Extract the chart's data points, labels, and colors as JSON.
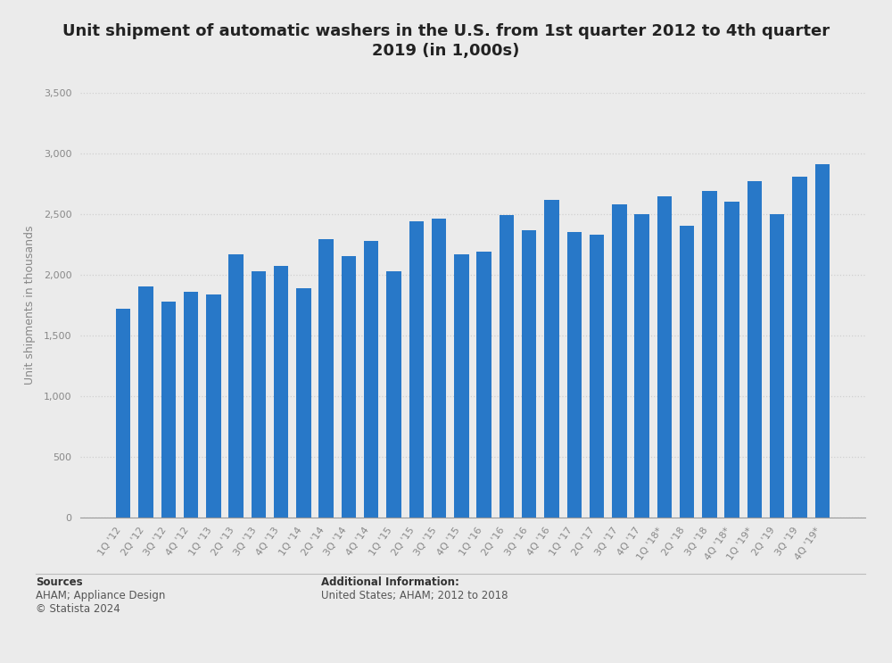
{
  "title_line1": "Unit shipment of automatic washers in the U.S. from 1st quarter 2012 to 4th quarter",
  "title_line2": "2019 (in 1,000s)",
  "ylabel": "Unit shipments in thousands",
  "bar_color": "#2878c8",
  "background_color": "#ebebeb",
  "plot_bg_color": "#ebebeb",
  "ylim": [
    0,
    3500
  ],
  "yticks": [
    0,
    500,
    1000,
    1500,
    2000,
    2500,
    3000,
    3500
  ],
  "categories": [
    "1Q '12",
    "2Q '12",
    "3Q '12",
    "4Q '12",
    "1Q '13",
    "2Q '13",
    "3Q '13",
    "4Q '13",
    "1Q '14",
    "2Q '14",
    "3Q '14",
    "4Q '14",
    "1Q '15",
    "2Q '15",
    "3Q '15",
    "4Q '15",
    "1Q '16",
    "2Q '16",
    "3Q '16",
    "4Q '16",
    "1Q '17",
    "2Q '17",
    "3Q '17",
    "4Q '17",
    "1Q '18*",
    "2Q '18",
    "3Q '18",
    "4Q '18*",
    "1Q '19*",
    "2Q '19",
    "3Q '19",
    "4Q '19*"
  ],
  "values": [
    1720,
    1900,
    1780,
    1860,
    1840,
    2170,
    2030,
    2070,
    1890,
    2290,
    2150,
    2280,
    2030,
    2440,
    2460,
    2170,
    2190,
    2490,
    2370,
    2620,
    2350,
    2330,
    2580,
    2500,
    2650,
    2400,
    2690,
    2600,
    2770,
    2500,
    2810,
    2910
  ],
  "sources_label": "Sources",
  "sources_body": "AHAM; Appliance Design\n© Statista 2024",
  "additional_label": "Additional Information:",
  "additional_body": "United States; AHAM; 2012 to 2018",
  "grid_color": "#d0d0d0",
  "title_fontsize": 13,
  "ylabel_fontsize": 9,
  "tick_fontsize": 8,
  "footer_fontsize": 8.5,
  "bar_width": 0.65
}
